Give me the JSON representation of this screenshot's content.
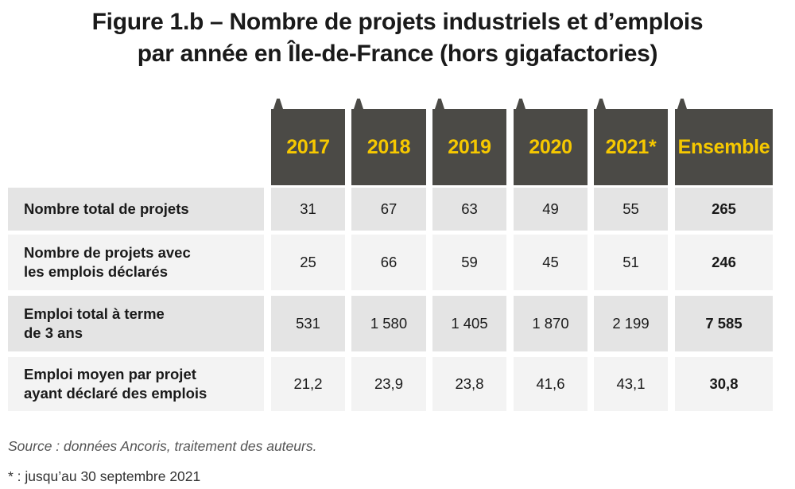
{
  "chart_data": {
    "type": "table",
    "title_lines": [
      "Figure 1.b – Nombre de projets industriels et d’emplois",
      "par année en Île-de-France (hors gigafactories)"
    ],
    "columns": [
      "2017",
      "2018",
      "2019",
      "2020",
      "2021*",
      "Ensemble"
    ],
    "rows": [
      {
        "label": "Nombre total de projets",
        "values": [
          "31",
          "67",
          "63",
          "49",
          "55",
          "265"
        ]
      },
      {
        "label": "Nombre de projets avec\nles emplois déclarés",
        "values": [
          "25",
          "66",
          "59",
          "45",
          "51",
          "246"
        ]
      },
      {
        "label": "Emploi total à terme\nde 3 ans",
        "values": [
          "531",
          "1 580",
          "1 405",
          "1 870",
          "2 199",
          "7 585"
        ]
      },
      {
        "label": "Emploi moyen par projet\nayant déclaré des emplois",
        "values": [
          "21,2",
          "23,9",
          "23,8",
          "41,6",
          "43,1",
          "30,8"
        ]
      }
    ],
    "source": "Source : données Ancoris, traitement des auteurs.",
    "footnote": "* : jusqu’au 30 septembre 2021"
  },
  "colors": {
    "header_bg": "#4b4a46",
    "header_text": "#f6c800",
    "row_odd_bg": "#e4e4e4",
    "row_even_bg": "#f3f3f3"
  }
}
